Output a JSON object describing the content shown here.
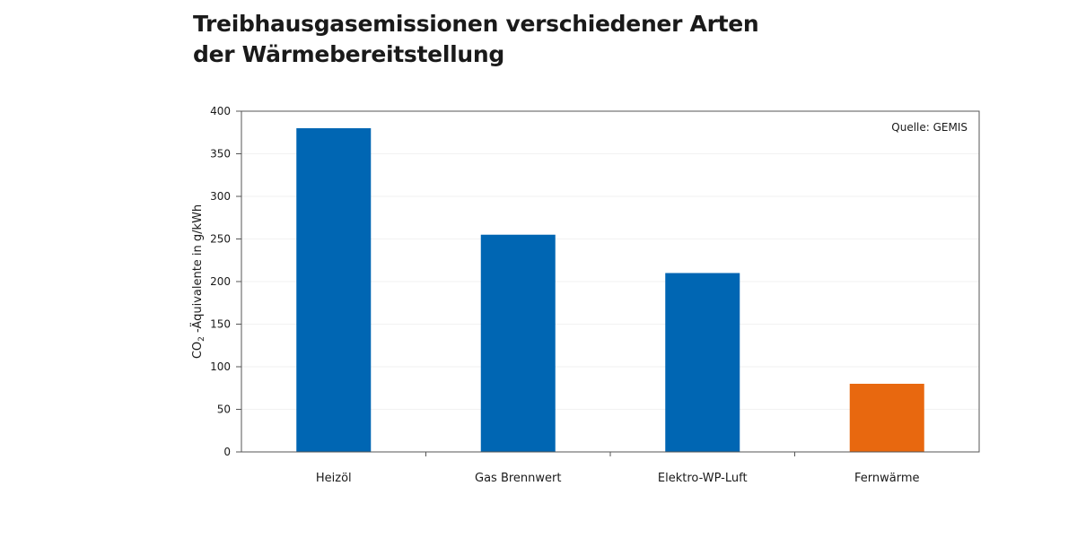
{
  "title_lines": [
    "Treibhausgasemissionen verschiedener Arten",
    "der Wärmebereitstellung"
  ],
  "chart_data": {
    "type": "bar",
    "categories": [
      "Heizöl",
      "Gas Brennwert",
      "Elektro-WP-Luft",
      "Fernwärme"
    ],
    "values": [
      380,
      255,
      210,
      80
    ],
    "bar_colors": [
      "#0066b3",
      "#0066b3",
      "#0066b3",
      "#e8680f"
    ],
    "ylabel_parts": [
      "CO",
      "2",
      " -Äquivalente in g/kWh"
    ],
    "ylim": [
      0,
      400
    ],
    "yticks": [
      "0",
      "50",
      "100",
      "150",
      "200",
      "250",
      "300",
      "350",
      "400"
    ],
    "annotation": "Quelle: GEMIS",
    "grid": true
  }
}
